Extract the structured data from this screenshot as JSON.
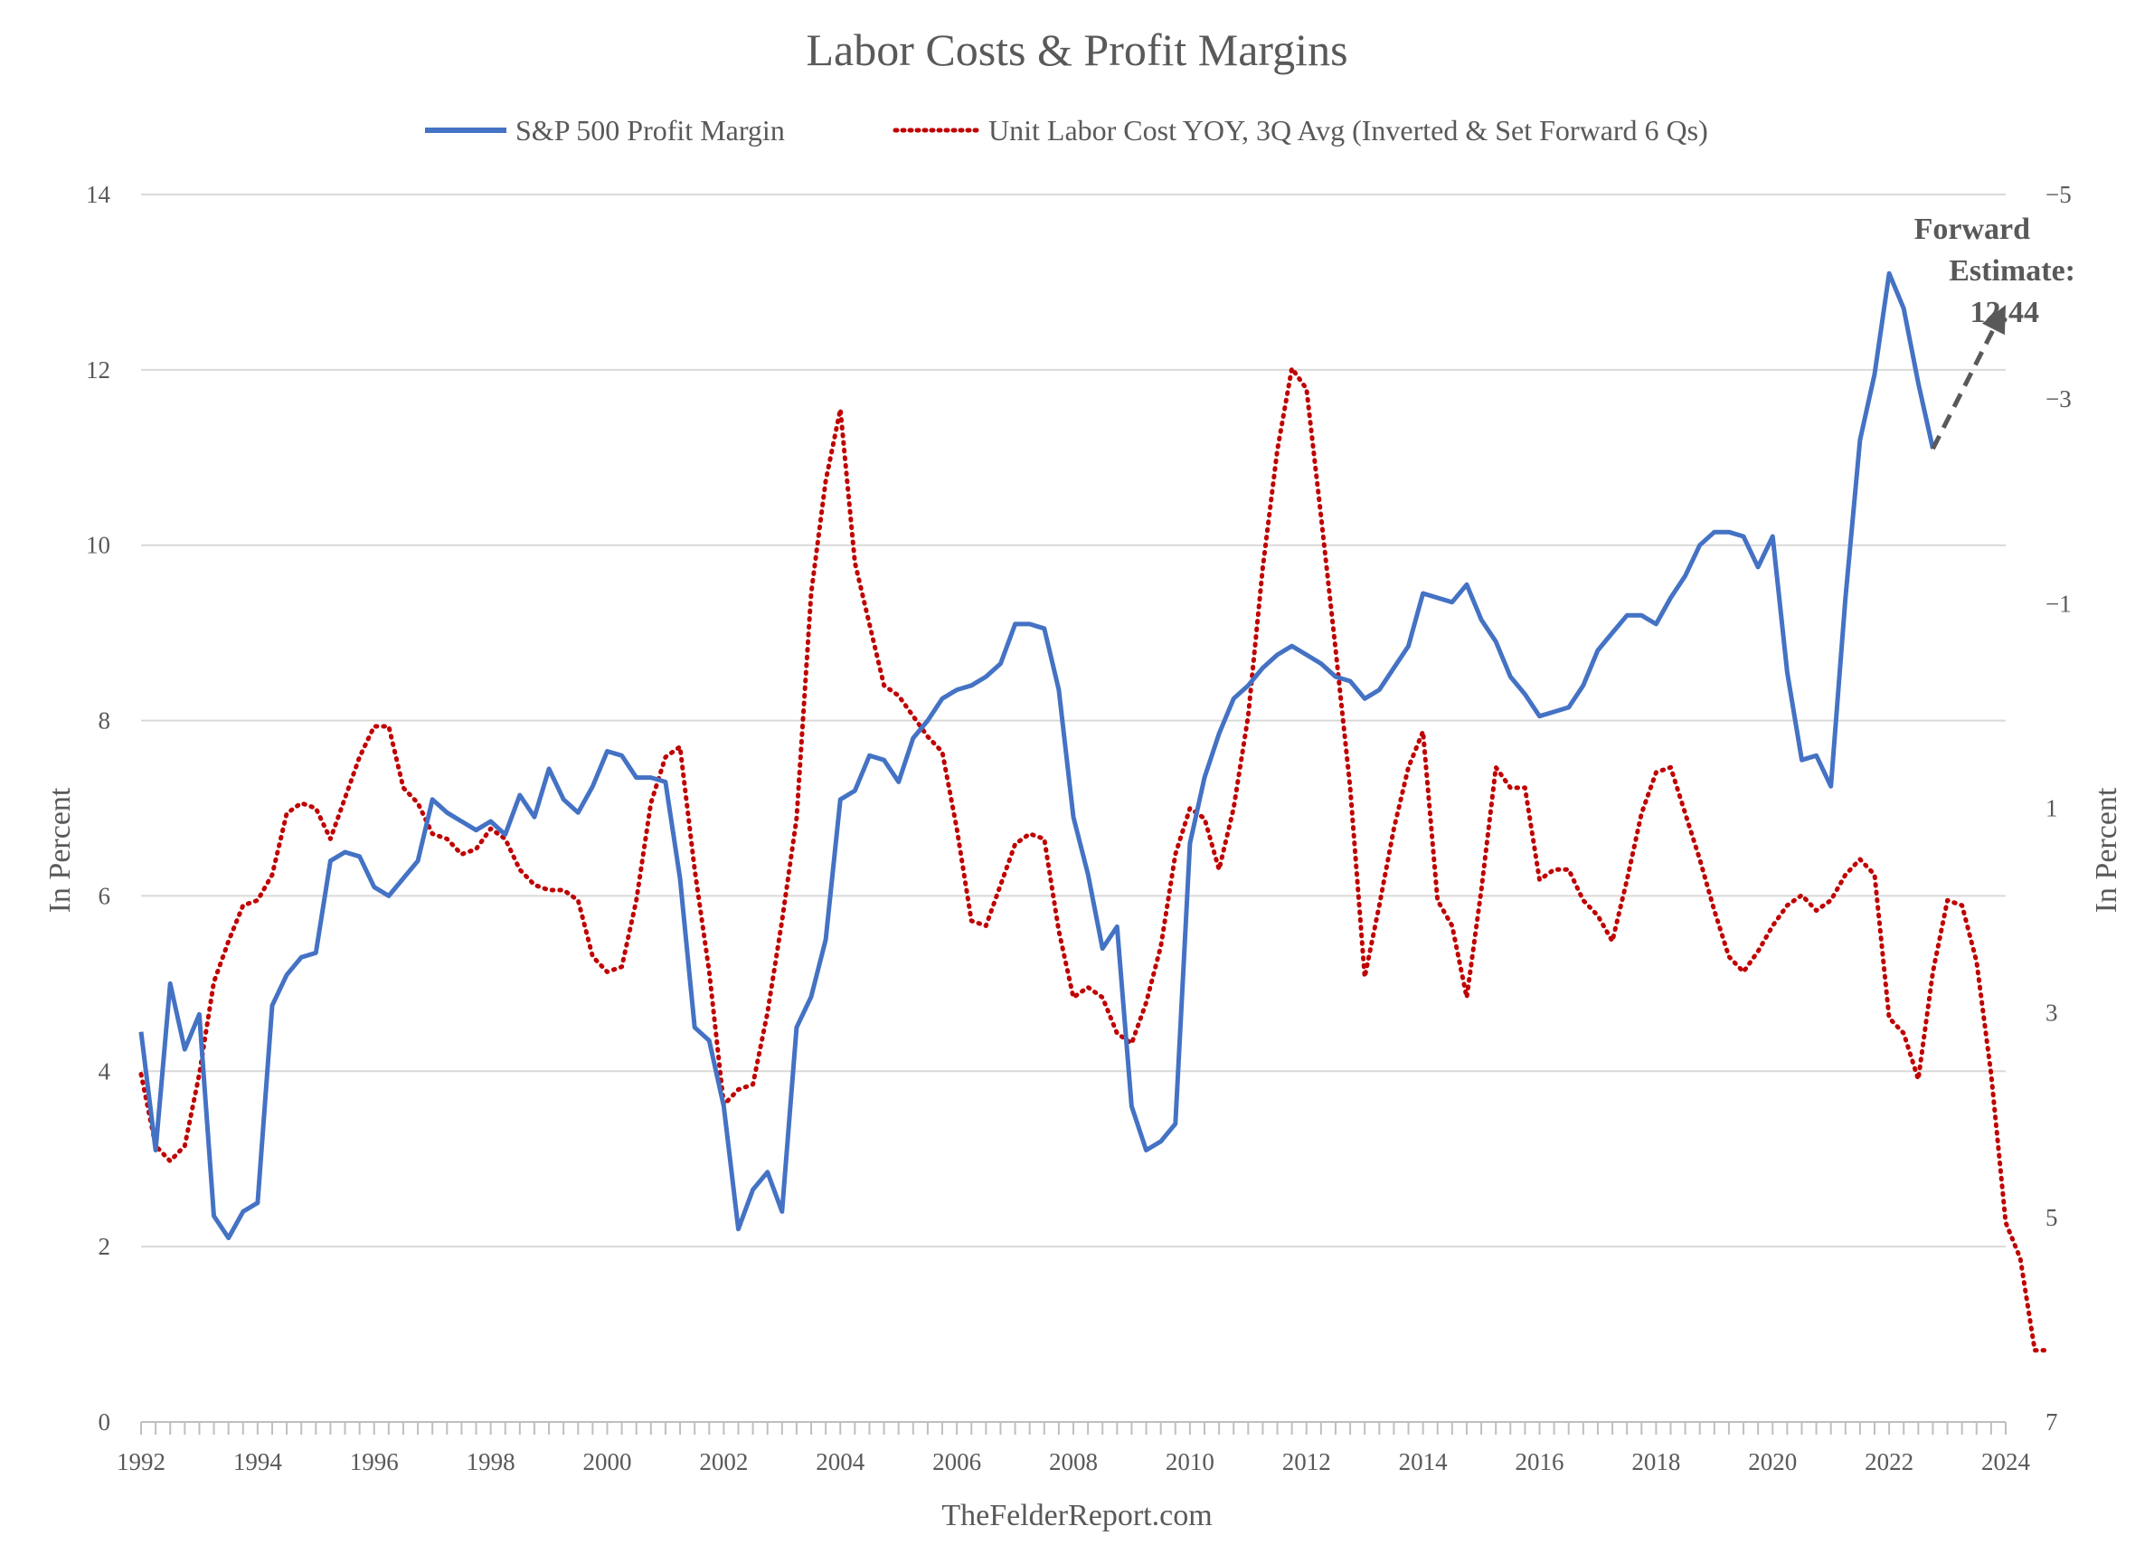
{
  "chart_data": {
    "type": "line",
    "title": "Labor Costs & Profit Margins",
    "source": "TheFelderReport.com",
    "xlim": [
      1992,
      2024
    ],
    "x_ticks": [
      "1992",
      "1994",
      "1996",
      "1998",
      "2000",
      "2002",
      "2004",
      "2006",
      "2008",
      "2010",
      "2012",
      "2014",
      "2016",
      "2018",
      "2020",
      "2022",
      "2024"
    ],
    "y_left": {
      "label": "In Percent",
      "range": [
        0,
        14
      ],
      "ticks": [
        "0",
        "2",
        "4",
        "6",
        "8",
        "10",
        "12",
        "14"
      ]
    },
    "y_right": {
      "label": "In Percent",
      "range": [
        -5,
        7
      ],
      "inverted": true,
      "ticks": [
        "-5",
        "-3",
        "-1",
        "1",
        "3",
        "5",
        "7"
      ]
    },
    "grid": true,
    "legend_position": "top-center",
    "annotation": {
      "lines": [
        "Forward",
        "Estimate:",
        "12.44"
      ],
      "value": 12.44
    },
    "series": [
      {
        "name": "S&P 500 Profit Margin",
        "axis": "left",
        "color": "#4472C4",
        "style": "solid",
        "points": [
          [
            1992.0,
            4.45
          ],
          [
            1992.25,
            3.1
          ],
          [
            1992.5,
            5.0
          ],
          [
            1992.75,
            4.25
          ],
          [
            1993.0,
            4.65
          ],
          [
            1993.25,
            2.35
          ],
          [
            1993.5,
            2.1
          ],
          [
            1993.75,
            2.4
          ],
          [
            1994.0,
            2.5
          ],
          [
            1994.25,
            4.75
          ],
          [
            1994.5,
            5.1
          ],
          [
            1994.75,
            5.3
          ],
          [
            1995.0,
            5.35
          ],
          [
            1995.25,
            6.4
          ],
          [
            1995.5,
            6.5
          ],
          [
            1995.75,
            6.45
          ],
          [
            1996.0,
            6.1
          ],
          [
            1996.25,
            6.0
          ],
          [
            1996.5,
            6.2
          ],
          [
            1996.75,
            6.4
          ],
          [
            1997.0,
            7.1
          ],
          [
            1997.25,
            6.95
          ],
          [
            1997.5,
            6.85
          ],
          [
            1997.75,
            6.75
          ],
          [
            1998.0,
            6.85
          ],
          [
            1998.25,
            6.7
          ],
          [
            1998.5,
            7.15
          ],
          [
            1998.75,
            6.9
          ],
          [
            1999.0,
            7.45
          ],
          [
            1999.25,
            7.1
          ],
          [
            1999.5,
            6.95
          ],
          [
            1999.75,
            7.25
          ],
          [
            2000.0,
            7.65
          ],
          [
            2000.25,
            7.6
          ],
          [
            2000.5,
            7.35
          ],
          [
            2000.75,
            7.35
          ],
          [
            2001.0,
            7.3
          ],
          [
            2001.25,
            6.2
          ],
          [
            2001.5,
            4.5
          ],
          [
            2001.75,
            4.35
          ],
          [
            2002.0,
            3.6
          ],
          [
            2002.25,
            2.2
          ],
          [
            2002.5,
            2.65
          ],
          [
            2002.75,
            2.85
          ],
          [
            2003.0,
            2.4
          ],
          [
            2003.25,
            4.5
          ],
          [
            2003.5,
            4.85
          ],
          [
            2003.75,
            5.5
          ],
          [
            2004.0,
            7.1
          ],
          [
            2004.25,
            7.2
          ],
          [
            2004.5,
            7.6
          ],
          [
            2004.75,
            7.55
          ],
          [
            2005.0,
            7.3
          ],
          [
            2005.25,
            7.8
          ],
          [
            2005.5,
            8.0
          ],
          [
            2005.75,
            8.25
          ],
          [
            2006.0,
            8.35
          ],
          [
            2006.25,
            8.4
          ],
          [
            2006.5,
            8.5
          ],
          [
            2006.75,
            8.65
          ],
          [
            2007.0,
            9.1
          ],
          [
            2007.25,
            9.1
          ],
          [
            2007.5,
            9.05
          ],
          [
            2007.75,
            8.35
          ],
          [
            2008.0,
            6.9
          ],
          [
            2008.25,
            6.25
          ],
          [
            2008.5,
            5.4
          ],
          [
            2008.75,
            5.65
          ],
          [
            2009.0,
            3.6
          ],
          [
            2009.25,
            3.1
          ],
          [
            2009.5,
            3.2
          ],
          [
            2009.75,
            3.4
          ],
          [
            2010.0,
            6.6
          ],
          [
            2010.25,
            7.35
          ],
          [
            2010.5,
            7.85
          ],
          [
            2010.75,
            8.25
          ],
          [
            2011.0,
            8.4
          ],
          [
            2011.25,
            8.6
          ],
          [
            2011.5,
            8.75
          ],
          [
            2011.75,
            8.85
          ],
          [
            2012.0,
            8.75
          ],
          [
            2012.25,
            8.65
          ],
          [
            2012.5,
            8.5
          ],
          [
            2012.75,
            8.45
          ],
          [
            2013.0,
            8.25
          ],
          [
            2013.25,
            8.35
          ],
          [
            2013.5,
            8.6
          ],
          [
            2013.75,
            8.85
          ],
          [
            2014.0,
            9.45
          ],
          [
            2014.25,
            9.4
          ],
          [
            2014.5,
            9.35
          ],
          [
            2014.75,
            9.55
          ],
          [
            2015.0,
            9.15
          ],
          [
            2015.25,
            8.9
          ],
          [
            2015.5,
            8.5
          ],
          [
            2015.75,
            8.3
          ],
          [
            2016.0,
            8.05
          ],
          [
            2016.25,
            8.1
          ],
          [
            2016.5,
            8.15
          ],
          [
            2016.75,
            8.4
          ],
          [
            2017.0,
            8.8
          ],
          [
            2017.25,
            9.0
          ],
          [
            2017.5,
            9.2
          ],
          [
            2017.75,
            9.2
          ],
          [
            2018.0,
            9.1
          ],
          [
            2018.25,
            9.4
          ],
          [
            2018.5,
            9.65
          ],
          [
            2018.75,
            10.0
          ],
          [
            2019.0,
            10.15
          ],
          [
            2019.25,
            10.15
          ],
          [
            2019.5,
            10.1
          ],
          [
            2019.75,
            9.75
          ],
          [
            2020.0,
            10.1
          ],
          [
            2020.25,
            8.55
          ],
          [
            2020.5,
            7.55
          ],
          [
            2020.75,
            7.6
          ],
          [
            2021.0,
            7.25
          ],
          [
            2021.25,
            9.4
          ],
          [
            2021.5,
            11.2
          ],
          [
            2021.75,
            11.95
          ],
          [
            2022.0,
            13.1
          ],
          [
            2022.25,
            12.7
          ],
          [
            2022.5,
            11.85
          ],
          [
            2022.75,
            11.1
          ]
        ]
      },
      {
        "name": "Unit Labor Cost YOY, 3Q Avg (Inverted & Set Forward 6 Qs)",
        "axis": "right",
        "color": "#C00000",
        "style": "dotted",
        "points": [
          [
            1992.0,
            3.6
          ],
          [
            1992.25,
            4.3
          ],
          [
            1992.5,
            4.45
          ],
          [
            1992.75,
            4.3
          ],
          [
            1993.0,
            3.6
          ],
          [
            1993.25,
            2.7
          ],
          [
            1993.5,
            2.3
          ],
          [
            1993.75,
            1.95
          ],
          [
            1994.0,
            1.9
          ],
          [
            1994.25,
            1.65
          ],
          [
            1994.5,
            1.05
          ],
          [
            1994.75,
            0.95
          ],
          [
            1995.0,
            1.0
          ],
          [
            1995.25,
            1.3
          ],
          [
            1995.5,
            0.9
          ],
          [
            1995.75,
            0.5
          ],
          [
            1996.0,
            0.2
          ],
          [
            1996.25,
            0.2
          ],
          [
            1996.5,
            0.8
          ],
          [
            1996.75,
            0.95
          ],
          [
            1997.0,
            1.25
          ],
          [
            1997.25,
            1.3
          ],
          [
            1997.5,
            1.45
          ],
          [
            1997.75,
            1.4
          ],
          [
            1998.0,
            1.2
          ],
          [
            1998.25,
            1.3
          ],
          [
            1998.5,
            1.6
          ],
          [
            1998.75,
            1.75
          ],
          [
            1999.0,
            1.8
          ],
          [
            1999.25,
            1.8
          ],
          [
            1999.5,
            1.9
          ],
          [
            1999.75,
            2.45
          ],
          [
            2000.0,
            2.6
          ],
          [
            2000.25,
            2.55
          ],
          [
            2000.5,
            1.9
          ],
          [
            2000.75,
            0.95
          ],
          [
            2001.0,
            0.5
          ],
          [
            2001.25,
            0.4
          ],
          [
            2001.5,
            1.6
          ],
          [
            2001.75,
            2.6
          ],
          [
            2002.0,
            3.9
          ],
          [
            2002.25,
            3.75
          ],
          [
            2002.5,
            3.7
          ],
          [
            2002.75,
            3.0
          ],
          [
            2003.0,
            2.1
          ],
          [
            2003.25,
            1.1
          ],
          [
            2003.5,
            -1.1
          ],
          [
            2003.75,
            -2.2
          ],
          [
            2004.0,
            -2.9
          ],
          [
            2004.25,
            -1.4
          ],
          [
            2004.5,
            -0.8
          ],
          [
            2004.75,
            -0.2
          ],
          [
            2005.0,
            -0.1
          ],
          [
            2005.25,
            0.1
          ],
          [
            2005.5,
            0.3
          ],
          [
            2005.75,
            0.45
          ],
          [
            2006.0,
            1.2
          ],
          [
            2006.25,
            2.1
          ],
          [
            2006.5,
            2.15
          ],
          [
            2006.75,
            1.75
          ],
          [
            2007.0,
            1.35
          ],
          [
            2007.25,
            1.25
          ],
          [
            2007.5,
            1.3
          ],
          [
            2007.75,
            2.2
          ],
          [
            2008.0,
            2.85
          ],
          [
            2008.25,
            2.75
          ],
          [
            2008.5,
            2.85
          ],
          [
            2008.75,
            3.2
          ],
          [
            2009.0,
            3.3
          ],
          [
            2009.25,
            2.9
          ],
          [
            2009.5,
            2.35
          ],
          [
            2009.75,
            1.45
          ],
          [
            2010.0,
            1.0
          ],
          [
            2010.25,
            1.1
          ],
          [
            2010.5,
            1.6
          ],
          [
            2010.75,
            1.0
          ],
          [
            2011.0,
            0.1
          ],
          [
            2011.25,
            -1.35
          ],
          [
            2011.5,
            -2.5
          ],
          [
            2011.75,
            -3.3
          ],
          [
            2012.0,
            -3.1
          ],
          [
            2012.25,
            -1.85
          ],
          [
            2012.5,
            -0.55
          ],
          [
            2012.75,
            0.8
          ],
          [
            2013.0,
            2.65
          ],
          [
            2013.25,
            1.95
          ],
          [
            2013.5,
            1.2
          ],
          [
            2013.75,
            0.6
          ],
          [
            2014.0,
            0.25
          ],
          [
            2014.25,
            1.9
          ],
          [
            2014.5,
            2.15
          ],
          [
            2014.75,
            2.85
          ],
          [
            2015.0,
            1.8
          ],
          [
            2015.25,
            0.6
          ],
          [
            2015.5,
            0.8
          ],
          [
            2015.75,
            0.8
          ],
          [
            2016.0,
            1.7
          ],
          [
            2016.25,
            1.6
          ],
          [
            2016.5,
            1.6
          ],
          [
            2016.75,
            1.9
          ],
          [
            2017.0,
            2.05
          ],
          [
            2017.25,
            2.3
          ],
          [
            2017.5,
            1.7
          ],
          [
            2017.75,
            1.05
          ],
          [
            2018.0,
            0.65
          ],
          [
            2018.25,
            0.6
          ],
          [
            2018.5,
            1.05
          ],
          [
            2018.75,
            1.5
          ],
          [
            2019.0,
            2.0
          ],
          [
            2019.25,
            2.45
          ],
          [
            2019.5,
            2.6
          ],
          [
            2019.75,
            2.4
          ],
          [
            2020.0,
            2.15
          ],
          [
            2020.25,
            1.95
          ],
          [
            2020.5,
            1.85
          ],
          [
            2020.75,
            2.0
          ],
          [
            2021.0,
            1.9
          ],
          [
            2021.25,
            1.65
          ],
          [
            2021.5,
            1.5
          ],
          [
            2021.75,
            1.65
          ],
          [
            2022.0,
            3.05
          ],
          [
            2022.25,
            3.2
          ],
          [
            2022.5,
            3.65
          ],
          [
            2022.75,
            2.6
          ],
          [
            2023.0,
            1.9
          ],
          [
            2023.25,
            1.95
          ],
          [
            2023.5,
            2.5
          ],
          [
            2023.75,
            3.6
          ],
          [
            2024.0,
            5.05
          ],
          [
            2024.25,
            5.4
          ],
          [
            2024.5,
            6.3
          ],
          [
            2024.75,
            6.3
          ]
        ]
      }
    ]
  }
}
